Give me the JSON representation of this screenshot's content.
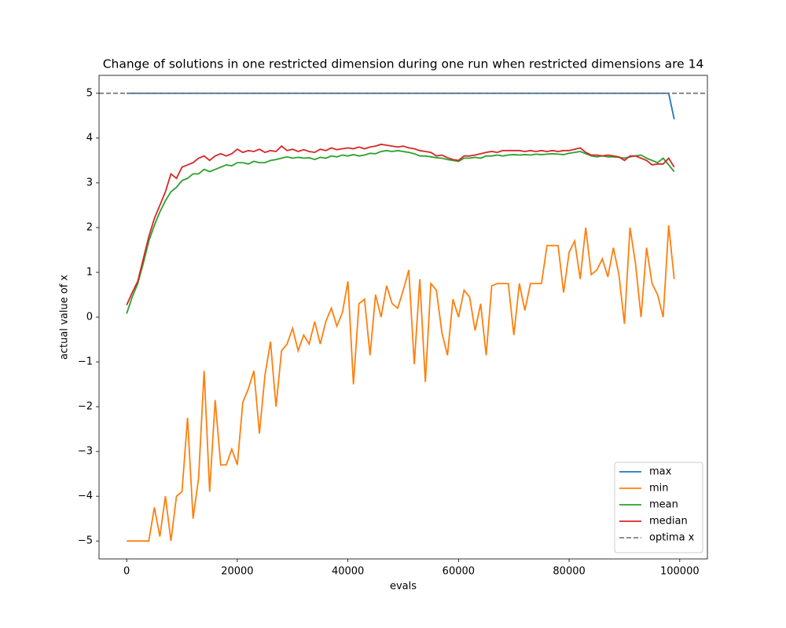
{
  "chart_data": {
    "type": "line",
    "title": "Change of solutions in one restricted dimension during one run when restricted dimensions are 14",
    "x_label": "evals",
    "y_label": "actual value of x",
    "xlim": [
      -5000,
      105000
    ],
    "ylim": [
      -5.4,
      5.4
    ],
    "xticks": [
      0,
      20000,
      40000,
      60000,
      80000,
      100000
    ],
    "yticks": [
      {
        "value": -5,
        "label": "−5"
      },
      {
        "value": -4,
        "label": "−4"
      },
      {
        "value": -3,
        "label": "−3"
      },
      {
        "value": -2,
        "label": "−2"
      },
      {
        "value": -1,
        "label": "−1"
      },
      0,
      1,
      2,
      3,
      4,
      5
    ],
    "legend": "lower right",
    "x": [
      0,
      1000,
      2000,
      3000,
      4000,
      5000,
      6000,
      7000,
      8000,
      9000,
      10000,
      11000,
      12000,
      13000,
      14000,
      15000,
      16000,
      17000,
      18000,
      19000,
      20000,
      21000,
      22000,
      23000,
      24000,
      25000,
      26000,
      27000,
      28000,
      29000,
      30000,
      31000,
      32000,
      33000,
      34000,
      35000,
      36000,
      37000,
      38000,
      39000,
      40000,
      41000,
      42000,
      43000,
      44000,
      45000,
      46000,
      47000,
      48000,
      49000,
      50000,
      51000,
      52000,
      53000,
      54000,
      55000,
      56000,
      57000,
      58000,
      59000,
      60000,
      61000,
      62000,
      63000,
      64000,
      65000,
      66000,
      67000,
      68000,
      69000,
      70000,
      71000,
      72000,
      73000,
      74000,
      75000,
      76000,
      77000,
      78000,
      79000,
      80000,
      81000,
      82000,
      83000,
      84000,
      85000,
      86000,
      87000,
      88000,
      89000,
      90000,
      91000,
      92000,
      93000,
      94000,
      95000,
      96000,
      97000,
      98000,
      99000
    ],
    "series": [
      {
        "name": "max",
        "color": "#1f77b4",
        "values": [
          5,
          5,
          5,
          5,
          5,
          5,
          5,
          5,
          5,
          5,
          5,
          5,
          5,
          5,
          5,
          5,
          5,
          5,
          5,
          5,
          5,
          5,
          5,
          5,
          5,
          5,
          5,
          5,
          5,
          5,
          5,
          5,
          5,
          5,
          5,
          5,
          5,
          5,
          5,
          5,
          5,
          5,
          5,
          5,
          5,
          5,
          5,
          5,
          5,
          5,
          5,
          5,
          5,
          5,
          5,
          5,
          5,
          5,
          5,
          5,
          5,
          5,
          5,
          5,
          5,
          5,
          5,
          5,
          5,
          5,
          5,
          5,
          5,
          5,
          5,
          5,
          5,
          5,
          5,
          5,
          5,
          5,
          5,
          5,
          5,
          5,
          5,
          5,
          5,
          5,
          5,
          5,
          5,
          5,
          5,
          5,
          5,
          5,
          5,
          4.42
        ]
      },
      {
        "name": "min",
        "color": "#ff7f0e",
        "values": [
          -5,
          -5,
          -5,
          -5,
          -5,
          -4.25,
          -4.9,
          -4.0,
          -5.0,
          -4.0,
          -3.9,
          -2.25,
          -4.5,
          -3.6,
          -1.2,
          -3.9,
          -1.85,
          -3.3,
          -3.3,
          -2.95,
          -3.3,
          -1.9,
          -1.6,
          -1.2,
          -2.6,
          -1.3,
          -0.55,
          -2.0,
          -0.75,
          -0.6,
          -0.25,
          -0.75,
          -0.4,
          -0.6,
          -0.1,
          -0.6,
          -0.1,
          0.2,
          -0.2,
          0.1,
          0.8,
          -1.5,
          0.3,
          0.4,
          -0.85,
          0.5,
          0.0,
          0.7,
          0.3,
          0.2,
          0.6,
          1.05,
          -1.05,
          0.85,
          -1.45,
          0.75,
          0.6,
          -0.35,
          -0.85,
          0.4,
          0.0,
          0.6,
          0.45,
          -0.3,
          0.3,
          -0.85,
          0.7,
          0.75,
          0.75,
          0.75,
          -0.4,
          0.75,
          0.15,
          0.75,
          0.75,
          0.75,
          1.6,
          1.6,
          1.6,
          0.55,
          1.45,
          1.7,
          0.85,
          2.0,
          0.95,
          1.05,
          1.3,
          0.9,
          1.55,
          0.95,
          -0.15,
          2.0,
          1.2,
          0.0,
          1.55,
          0.75,
          0.5,
          0.0,
          2.05,
          0.85
        ]
      },
      {
        "name": "mean",
        "color": "#2ca02c",
        "values": [
          0.08,
          0.45,
          0.75,
          1.2,
          1.7,
          2.05,
          2.35,
          2.6,
          2.8,
          2.9,
          3.05,
          3.1,
          3.2,
          3.2,
          3.3,
          3.25,
          3.3,
          3.35,
          3.4,
          3.38,
          3.45,
          3.45,
          3.42,
          3.48,
          3.45,
          3.45,
          3.5,
          3.52,
          3.55,
          3.58,
          3.55,
          3.57,
          3.55,
          3.56,
          3.52,
          3.57,
          3.55,
          3.6,
          3.58,
          3.62,
          3.6,
          3.63,
          3.6,
          3.62,
          3.66,
          3.65,
          3.7,
          3.72,
          3.7,
          3.72,
          3.7,
          3.68,
          3.65,
          3.6,
          3.6,
          3.58,
          3.56,
          3.55,
          3.52,
          3.5,
          3.48,
          3.55,
          3.55,
          3.57,
          3.55,
          3.6,
          3.6,
          3.62,
          3.6,
          3.62,
          3.63,
          3.62,
          3.63,
          3.62,
          3.64,
          3.63,
          3.64,
          3.65,
          3.64,
          3.63,
          3.66,
          3.68,
          3.7,
          3.65,
          3.6,
          3.58,
          3.6,
          3.58,
          3.58,
          3.57,
          3.55,
          3.58,
          3.6,
          3.62,
          3.55,
          3.5,
          3.45,
          3.55,
          3.4,
          3.25
        ]
      },
      {
        "name": "median",
        "color": "#d62728",
        "values": [
          0.27,
          0.55,
          0.8,
          1.3,
          1.8,
          2.2,
          2.5,
          2.8,
          3.2,
          3.1,
          3.35,
          3.4,
          3.45,
          3.55,
          3.6,
          3.5,
          3.6,
          3.65,
          3.6,
          3.65,
          3.75,
          3.68,
          3.72,
          3.7,
          3.75,
          3.68,
          3.72,
          3.7,
          3.82,
          3.72,
          3.75,
          3.7,
          3.74,
          3.7,
          3.68,
          3.75,
          3.72,
          3.78,
          3.74,
          3.76,
          3.78,
          3.76,
          3.8,
          3.76,
          3.8,
          3.82,
          3.86,
          3.84,
          3.82,
          3.8,
          3.82,
          3.78,
          3.76,
          3.72,
          3.7,
          3.68,
          3.6,
          3.62,
          3.56,
          3.52,
          3.5,
          3.6,
          3.6,
          3.62,
          3.65,
          3.68,
          3.7,
          3.68,
          3.72,
          3.72,
          3.72,
          3.72,
          3.7,
          3.72,
          3.7,
          3.72,
          3.7,
          3.72,
          3.7,
          3.72,
          3.72,
          3.75,
          3.78,
          3.68,
          3.62,
          3.62,
          3.6,
          3.62,
          3.6,
          3.58,
          3.5,
          3.6,
          3.6,
          3.55,
          3.5,
          3.4,
          3.42,
          3.42,
          3.55,
          3.35
        ]
      }
    ],
    "hlines": [
      {
        "name": "optima x",
        "y": 5,
        "color": "#7f7f7f",
        "style": "dashed"
      }
    ]
  }
}
